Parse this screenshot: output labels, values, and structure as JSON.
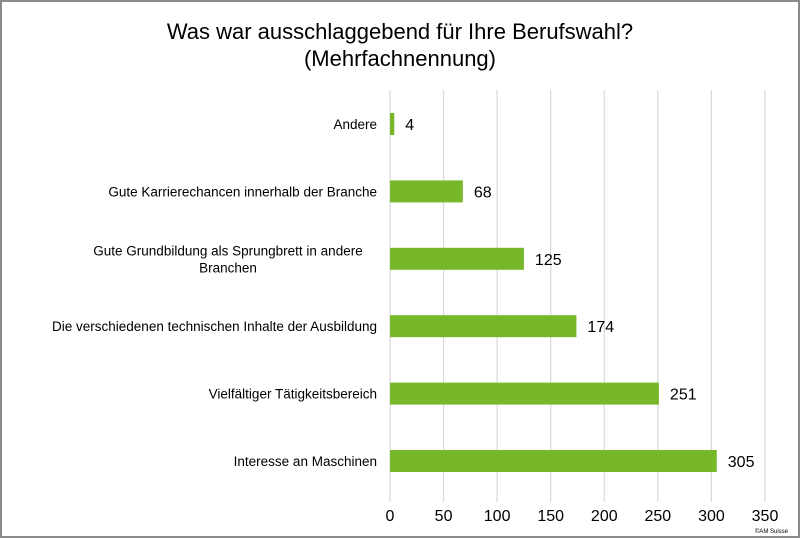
{
  "chart_data": {
    "type": "bar",
    "orientation": "horizontal",
    "title": [
      "Was war ausschlaggebend für Ihre Berufswahl?",
      "(Mehrfachnennung)"
    ],
    "categories": [
      [
        "Andere"
      ],
      [
        "Gute Karrierechancen innerhalb der Branche"
      ],
      [
        "Gute Grundbildung als Sprungbrett in andere",
        "Branchen"
      ],
      [
        "Die verschiedenen technischen Inhalte der Ausbildung"
      ],
      [
        "Vielfältiger Tätigkeitsbereich"
      ],
      [
        "Interesse an Maschinen"
      ]
    ],
    "values": [
      4,
      68,
      125,
      174,
      251,
      305
    ],
    "data_labels": [
      "4",
      "68",
      "125",
      "174",
      "251",
      "305"
    ],
    "xlim": [
      0,
      350
    ],
    "xticks": [
      0,
      50,
      100,
      150,
      200,
      250,
      300,
      350
    ],
    "xtick_labels": [
      "0",
      "50",
      "100",
      "150",
      "200",
      "250",
      "300",
      "350"
    ],
    "grid": "vertical",
    "legend": "none",
    "bar_color": "#77b82a",
    "grid_color": "#d9d9d9"
  },
  "copyright": "©AM Suisse"
}
